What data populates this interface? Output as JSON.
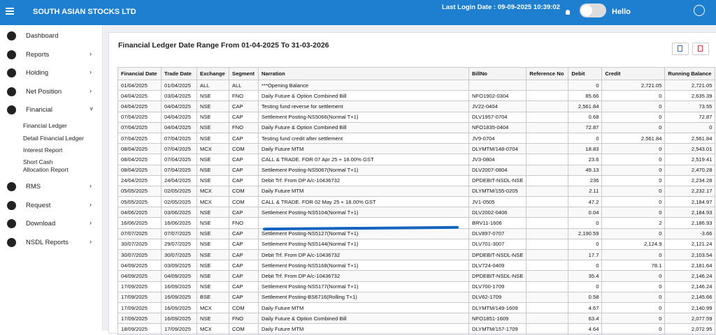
{
  "header": {
    "brand": "SOUTH ASIAN STOCKS LTD",
    "last_login": "Last Login Date : 09-09-2025 10:39:02",
    "greeting": "Hello"
  },
  "sidebar": {
    "items": [
      "Dashboard",
      "Reports",
      "Holding",
      "Net Position",
      "Financial",
      "RMS",
      "Request",
      "Download",
      "NSDL Reports"
    ],
    "financial_submenu": [
      "Financial Ledger",
      "Detail Financial Ledger",
      "Interest Report",
      "Short Cash Allocation Report"
    ]
  },
  "report": {
    "title": "Financial Ledger Date Range From 01-04-2025 To 31-03-2026"
  },
  "table": {
    "columns": [
      "Financial Date",
      "Trade Date",
      "Exchange",
      "Segment",
      "Narration",
      "BillNo",
      "Reference No",
      "Debit",
      "Credit",
      "Running Balance"
    ],
    "rows": [
      [
        "01/04/2025",
        "01/04/2025",
        "ALL",
        "ALL",
        "***Opening Balance",
        null,
        null,
        "0",
        "2,721.05",
        "2,721.05"
      ],
      [
        "04/04/2025",
        "03/04/2025",
        "NSE",
        "FNO",
        "Daily Future & Option Combined Bill",
        "NFO1902-0304",
        null,
        "85.66",
        "0",
        "2,635.39"
      ],
      [
        "04/04/2025",
        "04/04/2025",
        "NSE",
        "CAP",
        "Testing fund reverse for settlement",
        "JV22-0404",
        null,
        "2,561.84",
        "0",
        "73.55"
      ],
      [
        "07/04/2025",
        "04/04/2025",
        "NSE",
        "CAP",
        "Settlement Posting-NS5066(Normal T+1)",
        "DLV1957-0704",
        null,
        "0.68",
        "0",
        "72.87"
      ],
      [
        "07/04/2025",
        "04/04/2025",
        "NSE",
        "FNO",
        "Daily Future & Option Combined Bill",
        "NFO1835-0404",
        null,
        "72.87",
        "0",
        "0"
      ],
      [
        "07/04/2025",
        "07/04/2025",
        "NSE",
        "CAP",
        "Testing fund credit after settlement",
        "JV9-0704",
        null,
        "0",
        "2,561.84",
        "2,561.84"
      ],
      [
        "08/04/2025",
        "07/04/2025",
        "MCX",
        "COM",
        "Daily Future MTM",
        "DLYMTM/148-0704",
        null,
        "18.83",
        "0",
        "2,543.01"
      ],
      [
        "08/04/2025",
        "07/04/2025",
        "NSE",
        "CAP",
        "CALL & TRADE. FOR 07 Apr 25 + 18.00% GST",
        "JV3-0804",
        null,
        "23.6",
        "0",
        "2,519.41"
      ],
      [
        "08/04/2025",
        "07/04/2025",
        "NSE",
        "CAP",
        "Settlement Posting-NS5067(Normal T+1)",
        "DLV2007-0804",
        null,
        "49.13",
        "0",
        "2,470.28"
      ],
      [
        "24/04/2025",
        "24/04/2025",
        "NSE",
        "CAP",
        "Debit Trf. From DP A/c-10436732",
        "DPDEBIT-NSDL-NSE",
        null,
        "236",
        "0",
        "2,234.28"
      ],
      [
        "05/05/2025",
        "02/05/2025",
        "MCX",
        "COM",
        "Daily Future MTM",
        "DLYMTM/155-0205",
        null,
        "2.11",
        "0",
        "2,232.17"
      ],
      [
        "05/05/2025",
        "02/05/2025",
        "MCX",
        "COM",
        "CALL & TRADE. FOR 02 May 25 + 18.00% GST",
        "JV1-0505",
        null,
        "47.2",
        "0",
        "2,184.97"
      ],
      [
        "04/06/2025",
        "03/06/2025",
        "NSE",
        "CAP",
        "Settlement Posting-NS5104(Normal T+1)",
        "DLV2002-0406",
        null,
        "0.04",
        "0",
        "2,184.93"
      ],
      [
        "16/06/2025",
        "16/06/2025",
        "NSE",
        "FNO",
        null,
        "BRV11-1606",
        null,
        "0",
        "2",
        "2,186.93"
      ],
      [
        "07/07/2025",
        "07/07/2025",
        "NSE",
        "CAP",
        "Settlement Posting-NS5127(Normal T+1)",
        "DLV897-0707",
        null,
        "2,190.59",
        "0",
        "-3.66"
      ],
      [
        "30/07/2025",
        "29/07/2025",
        "NSE",
        "CAP",
        "Settlement Posting-NS5144(Normal T+1)",
        "DLV701-3007",
        null,
        "0",
        "2,124.9",
        "2,121.24"
      ],
      [
        "30/07/2025",
        "30/07/2025",
        "NSE",
        "CAP",
        "Debit Trf. From DP A/c-10436732",
        "DPDEBIT-NSDL-NSE",
        null,
        "17.7",
        "0",
        "2,103.54"
      ],
      [
        "04/09/2025",
        "03/09/2025",
        "NSE",
        "CAP",
        "Settlement Posting-NS5168(Normal T+1)",
        "DLV724-0409",
        null,
        "0",
        "78.1",
        "2,181.64"
      ],
      [
        "04/09/2025",
        "04/09/2025",
        "NSE",
        "CAP",
        "Debit Trf. From DP A/c-10436732",
        "DPDEBIT-NSDL-NSE",
        null,
        "35.4",
        "0",
        "2,146.24"
      ],
      [
        "17/09/2025",
        "16/09/2025",
        "NSE",
        "CAP",
        "Settlement Posting-NS5177(Normal T+1)",
        "DLV700-1709",
        null,
        "0",
        "0",
        "2,146.24"
      ],
      [
        "17/09/2025",
        "16/09/2025",
        "BSE",
        "CAP",
        "Settlement Posting-BS6716(Rolling T+1)",
        "DLV62-1709",
        null,
        "0.58",
        "0",
        "2,145.66"
      ],
      [
        "17/09/2025",
        "16/09/2025",
        "MCX",
        "COM",
        "Daily Future MTM",
        "DLYMTM/149-1609",
        null,
        "4.67",
        "0",
        "2,140.99"
      ],
      [
        "17/09/2025",
        "16/09/2025",
        "NSE",
        "FNO",
        "Daily Future & Option Combined Bill",
        "NFO1851-1609",
        null,
        "63.4",
        "0",
        "2,077.59"
      ],
      [
        "18/09/2025",
        "17/09/2025",
        "MCX",
        "COM",
        "Daily Future MTM",
        "DLYMTM/157-1709",
        null,
        "4.64",
        "0",
        "2,072.95"
      ]
    ]
  }
}
